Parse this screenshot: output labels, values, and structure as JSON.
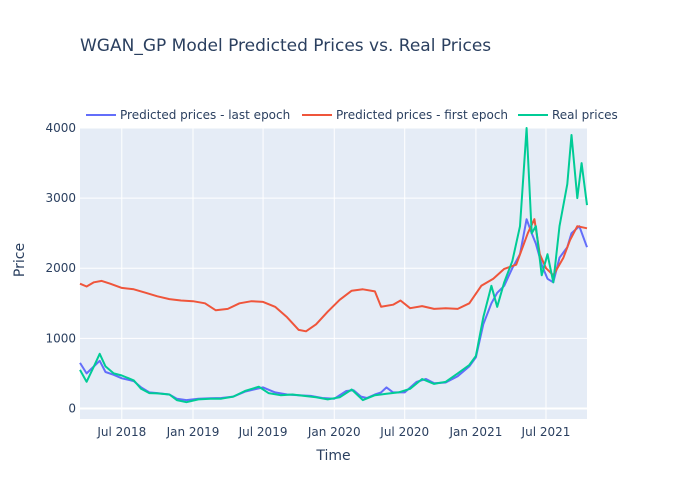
{
  "chart_data": {
    "type": "line",
    "title": "WGAN_GP Model Predicted Prices vs. Real Prices",
    "xlabel": "Time",
    "ylabel": "Price",
    "xlim": [
      "2018-03-15",
      "2021-10-15"
    ],
    "ylim": [
      -150,
      4000
    ],
    "y_ticks": [
      0,
      1000,
      2000,
      3000,
      4000
    ],
    "x_ticks": [
      {
        "date": "2018-07-01",
        "label": "Jul 2018"
      },
      {
        "date": "2019-01-01",
        "label": "Jan 2019"
      },
      {
        "date": "2019-07-01",
        "label": "Jul 2019"
      },
      {
        "date": "2020-01-01",
        "label": "Jan 2020"
      },
      {
        "date": "2020-07-01",
        "label": "Jul 2020"
      },
      {
        "date": "2021-01-01",
        "label": "Jan 2021"
      },
      {
        "date": "2021-07-01",
        "label": "Jul 2021"
      }
    ],
    "grid": true,
    "legend_position": "top",
    "plot_background": "#e5ecf6",
    "series": [
      {
        "name": "Predicted prices - last epoch",
        "color": "#636efa",
        "points": [
          [
            "2018-03-15",
            650
          ],
          [
            "2018-04-01",
            500
          ],
          [
            "2018-04-20",
            600
          ],
          [
            "2018-05-05",
            680
          ],
          [
            "2018-05-20",
            520
          ],
          [
            "2018-06-10",
            480
          ],
          [
            "2018-07-01",
            430
          ],
          [
            "2018-08-01",
            390
          ],
          [
            "2018-08-20",
            300
          ],
          [
            "2018-09-10",
            230
          ],
          [
            "2018-10-01",
            220
          ],
          [
            "2018-11-01",
            200
          ],
          [
            "2018-11-20",
            140
          ],
          [
            "2018-12-15",
            120
          ],
          [
            "2019-01-15",
            140
          ],
          [
            "2019-02-15",
            145
          ],
          [
            "2019-03-15",
            150
          ],
          [
            "2019-04-15",
            170
          ],
          [
            "2019-05-15",
            240
          ],
          [
            "2019-06-15",
            280
          ],
          [
            "2019-07-01",
            300
          ],
          [
            "2019-08-01",
            230
          ],
          [
            "2019-09-01",
            200
          ],
          [
            "2019-10-01",
            190
          ],
          [
            "2019-11-01",
            180
          ],
          [
            "2019-12-01",
            150
          ],
          [
            "2020-01-01",
            140
          ],
          [
            "2020-02-01",
            250
          ],
          [
            "2020-02-20",
            260
          ],
          [
            "2020-03-10",
            170
          ],
          [
            "2020-03-25",
            150
          ],
          [
            "2020-04-15",
            200
          ],
          [
            "2020-05-01",
            230
          ],
          [
            "2020-05-15",
            300
          ],
          [
            "2020-06-01",
            230
          ],
          [
            "2020-07-01",
            230
          ],
          [
            "2020-08-01",
            380
          ],
          [
            "2020-08-25",
            420
          ],
          [
            "2020-09-15",
            360
          ],
          [
            "2020-10-15",
            370
          ],
          [
            "2020-11-15",
            460
          ],
          [
            "2020-12-15",
            600
          ],
          [
            "2021-01-01",
            730
          ],
          [
            "2021-01-20",
            1200
          ],
          [
            "2021-02-10",
            1500
          ],
          [
            "2021-02-25",
            1650
          ],
          [
            "2021-03-15",
            1750
          ],
          [
            "2021-04-05",
            2000
          ],
          [
            "2021-04-25",
            2200
          ],
          [
            "2021-05-12",
            2700
          ],
          [
            "2021-05-25",
            2500
          ],
          [
            "2021-06-05",
            2350
          ],
          [
            "2021-06-20",
            2050
          ],
          [
            "2021-07-05",
            1850
          ],
          [
            "2021-07-20",
            1800
          ],
          [
            "2021-08-05",
            2150
          ],
          [
            "2021-08-25",
            2300
          ],
          [
            "2021-09-05",
            2500
          ],
          [
            "2021-09-25",
            2600
          ],
          [
            "2021-10-15",
            2300
          ]
        ]
      },
      {
        "name": "Predicted prices - first epoch",
        "color": "#ef553b",
        "points": [
          [
            "2018-03-15",
            1780
          ],
          [
            "2018-04-01",
            1740
          ],
          [
            "2018-04-20",
            1800
          ],
          [
            "2018-05-10",
            1820
          ],
          [
            "2018-06-01",
            1780
          ],
          [
            "2018-07-01",
            1720
          ],
          [
            "2018-08-01",
            1700
          ],
          [
            "2018-09-01",
            1650
          ],
          [
            "2018-10-01",
            1600
          ],
          [
            "2018-11-01",
            1560
          ],
          [
            "2018-12-01",
            1540
          ],
          [
            "2019-01-01",
            1530
          ],
          [
            "2019-02-01",
            1500
          ],
          [
            "2019-03-01",
            1400
          ],
          [
            "2019-04-01",
            1420
          ],
          [
            "2019-05-01",
            1500
          ],
          [
            "2019-06-01",
            1530
          ],
          [
            "2019-07-01",
            1520
          ],
          [
            "2019-08-01",
            1450
          ],
          [
            "2019-09-01",
            1300
          ],
          [
            "2019-10-01",
            1120
          ],
          [
            "2019-10-20",
            1100
          ],
          [
            "2019-11-15",
            1200
          ],
          [
            "2019-12-15",
            1380
          ],
          [
            "2020-01-15",
            1550
          ],
          [
            "2020-02-15",
            1680
          ],
          [
            "2020-03-15",
            1700
          ],
          [
            "2020-04-15",
            1670
          ],
          [
            "2020-05-01",
            1450
          ],
          [
            "2020-06-01",
            1480
          ],
          [
            "2020-06-20",
            1540
          ],
          [
            "2020-07-15",
            1430
          ],
          [
            "2020-08-15",
            1460
          ],
          [
            "2020-09-15",
            1420
          ],
          [
            "2020-10-15",
            1430
          ],
          [
            "2020-11-15",
            1420
          ],
          [
            "2020-12-15",
            1500
          ],
          [
            "2021-01-15",
            1750
          ],
          [
            "2021-02-15",
            1850
          ],
          [
            "2021-03-15",
            1990
          ],
          [
            "2021-04-15",
            2050
          ],
          [
            "2021-05-15",
            2500
          ],
          [
            "2021-06-01",
            2700
          ],
          [
            "2021-06-15",
            2200
          ],
          [
            "2021-07-01",
            2000
          ],
          [
            "2021-07-20",
            1900
          ],
          [
            "2021-08-15",
            2150
          ],
          [
            "2021-09-01",
            2400
          ],
          [
            "2021-09-20",
            2600
          ],
          [
            "2021-10-15",
            2570
          ]
        ]
      },
      {
        "name": "Real prices",
        "color": "#00cc96",
        "points": [
          [
            "2018-03-15",
            550
          ],
          [
            "2018-04-01",
            380
          ],
          [
            "2018-04-20",
            600
          ],
          [
            "2018-05-05",
            780
          ],
          [
            "2018-05-20",
            600
          ],
          [
            "2018-06-10",
            500
          ],
          [
            "2018-07-01",
            470
          ],
          [
            "2018-08-01",
            400
          ],
          [
            "2018-08-20",
            280
          ],
          [
            "2018-09-10",
            220
          ],
          [
            "2018-10-01",
            215
          ],
          [
            "2018-11-01",
            200
          ],
          [
            "2018-11-20",
            120
          ],
          [
            "2018-12-15",
            90
          ],
          [
            "2019-01-15",
            130
          ],
          [
            "2019-02-15",
            140
          ],
          [
            "2019-03-15",
            140
          ],
          [
            "2019-04-15",
            170
          ],
          [
            "2019-05-15",
            250
          ],
          [
            "2019-06-20",
            310
          ],
          [
            "2019-07-15",
            220
          ],
          [
            "2019-08-15",
            190
          ],
          [
            "2019-09-15",
            200
          ],
          [
            "2019-10-15",
            180
          ],
          [
            "2019-11-15",
            160
          ],
          [
            "2019-12-15",
            130
          ],
          [
            "2020-01-15",
            160
          ],
          [
            "2020-02-15",
            270
          ],
          [
            "2020-03-15",
            120
          ],
          [
            "2020-04-15",
            190
          ],
          [
            "2020-05-15",
            210
          ],
          [
            "2020-06-15",
            230
          ],
          [
            "2020-07-15",
            280
          ],
          [
            "2020-08-15",
            420
          ],
          [
            "2020-09-15",
            350
          ],
          [
            "2020-10-15",
            380
          ],
          [
            "2020-11-15",
            500
          ],
          [
            "2020-12-15",
            620
          ],
          [
            "2021-01-01",
            750
          ],
          [
            "2021-01-20",
            1300
          ],
          [
            "2021-02-10",
            1750
          ],
          [
            "2021-02-25",
            1450
          ],
          [
            "2021-03-15",
            1800
          ],
          [
            "2021-04-05",
            2100
          ],
          [
            "2021-04-25",
            2600
          ],
          [
            "2021-05-12",
            4000
          ],
          [
            "2021-05-25",
            2500
          ],
          [
            "2021-06-05",
            2600
          ],
          [
            "2021-06-20",
            1900
          ],
          [
            "2021-07-05",
            2200
          ],
          [
            "2021-07-20",
            1800
          ],
          [
            "2021-08-05",
            2600
          ],
          [
            "2021-08-25",
            3200
          ],
          [
            "2021-09-05",
            3900
          ],
          [
            "2021-09-20",
            3000
          ],
          [
            "2021-10-01",
            3500
          ],
          [
            "2021-10-15",
            2900
          ]
        ]
      }
    ]
  }
}
